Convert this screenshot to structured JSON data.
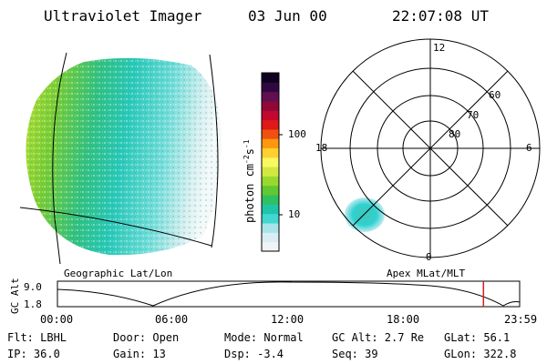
{
  "header": {
    "instrument": "Ultraviolet Imager",
    "date": "03 Jun 00",
    "time": "22:07:08 UT"
  },
  "colorbar": {
    "unit": "photon cm",
    "unit_exp1": "-2",
    "unit_mid": "s",
    "unit_exp2": "-1",
    "ticks": [
      "100",
      "10"
    ],
    "colors": [
      "#f0f4f6",
      "#d8eef2",
      "#a8e4ea",
      "#40d8d0",
      "#20c4a8",
      "#30c060",
      "#60c830",
      "#98d830",
      "#d0e840",
      "#f8f860",
      "#ffd030",
      "#ff9810",
      "#f05010",
      "#e01818",
      "#c00830",
      "#900838",
      "#601050",
      "#300840",
      "#100020"
    ]
  },
  "left_panel": {
    "label": "Geographic Lat/Lon"
  },
  "polar_panel": {
    "label": "Apex MLat/MLT",
    "mlt_labels": {
      "top": "12",
      "left": "18",
      "right": "6",
      "bottom": "0"
    },
    "lat_labels": [
      "60",
      "70",
      "80"
    ]
  },
  "timeline": {
    "ylabel": "GC Alt",
    "yticks": [
      "9.0",
      "1.8"
    ],
    "xticks": [
      "00:00",
      "06:00",
      "12:00",
      "18:00",
      "23:59"
    ],
    "marker_color": "#d02020",
    "marker_time_hours": 22.12
  },
  "info": {
    "row1": {
      "flt": "Flt: LBHL",
      "door": "Door: Open",
      "mode": "Mode: Normal",
      "gcalt": "GC Alt: 2.7 Re",
      "glat": "GLat:  56.1"
    },
    "row2": {
      "ip": "IP: 36.0",
      "gain": "Gain: 13",
      "dsp": "Dsp:   -3.4",
      "seq": "Seq: 39",
      "glon": "GLon: 322.8"
    }
  }
}
